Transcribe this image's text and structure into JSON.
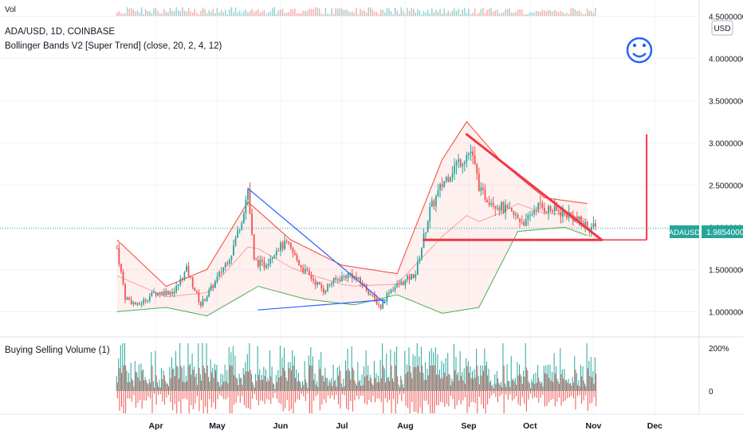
{
  "header": {
    "vol_label": "Vol",
    "symbol_line": "ADA/USD, 1D, COINBASE",
    "indicator_line": "Bollinger Bands V2 [Super Trend] (close, 20, 2, 4, 12)",
    "lower_indicator": "Buying Selling Volume (1)",
    "currency": "USD",
    "last_price_symbol": "ADAUSD",
    "last_price": "1.98540000"
  },
  "icons": [
    "smiley-face-icon"
  ],
  "colors": {
    "up": "#26a69a",
    "down": "#ef5350",
    "accent_red": "#f23645",
    "blue_line": "#2962ff",
    "green_band": "#4caf50",
    "red_band": "#f44336"
  },
  "chart_data": {
    "type": "candlestick",
    "x_tick_labels": [
      "Apr",
      "May",
      "Jun",
      "Jul",
      "Aug",
      "Sep",
      "Oct",
      "Nov",
      "Dec"
    ],
    "y_tick_labels": [
      "4.50000000",
      "4.00000000",
      "3.50000000",
      "3.00000000",
      "2.50000000",
      "2.00000000",
      "1.50000000",
      "1.00000000"
    ],
    "y_ticks": [
      4.5,
      4.0,
      3.5,
      3.0,
      2.5,
      2.0,
      1.5,
      1.0
    ],
    "ylim": [
      0.72,
      4.56
    ],
    "lower_y_tick_labels": [
      "200%",
      "0"
    ],
    "start_date": "2021-03-13",
    "end_date": "2021-11-02",
    "last_price": 1.9854,
    "price_path": [
      [
        "2021-03-13",
        1.75
      ],
      [
        "2021-03-17",
        1.17
      ],
      [
        "2021-03-23",
        1.07
      ],
      [
        "2021-03-31",
        1.22
      ],
      [
        "2021-04-10",
        1.24
      ],
      [
        "2021-04-16",
        1.5
      ],
      [
        "2021-04-23",
        1.08
      ],
      [
        "2021-04-30",
        1.35
      ],
      [
        "2021-05-08",
        1.7
      ],
      [
        "2021-05-13",
        2.1
      ],
      [
        "2021-05-16",
        2.45
      ],
      [
        "2021-05-19",
        1.6
      ],
      [
        "2021-05-24",
        1.55
      ],
      [
        "2021-05-30",
        1.75
      ],
      [
        "2021-06-04",
        1.8
      ],
      [
        "2021-06-12",
        1.5
      ],
      [
        "2021-06-22",
        1.25
      ],
      [
        "2021-06-26",
        1.35
      ],
      [
        "2021-07-05",
        1.45
      ],
      [
        "2021-07-12",
        1.3
      ],
      [
        "2021-07-20",
        1.05
      ],
      [
        "2021-07-24",
        1.25
      ],
      [
        "2021-07-31",
        1.35
      ],
      [
        "2021-08-06",
        1.45
      ],
      [
        "2021-08-13",
        2.2
      ],
      [
        "2021-08-20",
        2.55
      ],
      [
        "2021-08-26",
        2.75
      ],
      [
        "2021-09-02",
        2.9
      ],
      [
        "2021-09-07",
        2.4
      ],
      [
        "2021-09-13",
        2.3
      ],
      [
        "2021-09-22",
        2.15
      ],
      [
        "2021-09-29",
        2.05
      ],
      [
        "2021-10-04",
        2.25
      ],
      [
        "2021-10-12",
        2.2
      ],
      [
        "2021-10-20",
        2.15
      ],
      [
        "2021-10-26",
        2.05
      ],
      [
        "2021-11-02",
        1.9854
      ]
    ],
    "bollinger_upper": [
      [
        "2021-03-13",
        1.85
      ],
      [
        "2021-04-06",
        1.3
      ],
      [
        "2021-04-26",
        1.5
      ],
      [
        "2021-05-16",
        2.3
      ],
      [
        "2021-06-06",
        1.85
      ],
      [
        "2021-07-01",
        1.55
      ],
      [
        "2021-07-28",
        1.45
      ],
      [
        "2021-08-19",
        2.8
      ],
      [
        "2021-08-31",
        3.25
      ],
      [
        "2021-09-18",
        2.75
      ],
      [
        "2021-10-08",
        2.35
      ],
      [
        "2021-10-29",
        2.28
      ]
    ],
    "bollinger_lower": [
      [
        "2021-03-13",
        1.0
      ],
      [
        "2021-04-06",
        1.05
      ],
      [
        "2021-04-26",
        0.95
      ],
      [
        "2021-05-21",
        1.3
      ],
      [
        "2021-06-13",
        1.15
      ],
      [
        "2021-07-07",
        1.08
      ],
      [
        "2021-07-28",
        1.2
      ],
      [
        "2021-08-19",
        0.98
      ],
      [
        "2021-09-06",
        1.05
      ],
      [
        "2021-09-25",
        1.95
      ],
      [
        "2021-10-18",
        2.0
      ],
      [
        "2021-10-29",
        1.9
      ]
    ],
    "drawings": {
      "upper_triangle_lines": [
        {
          "color": "blue",
          "from": [
            "2021-05-16",
            2.46
          ],
          "to": [
            "2021-07-22",
            1.1
          ]
        },
        {
          "color": "blue",
          "from": [
            "2021-05-21",
            1.02
          ],
          "to": [
            "2021-07-22",
            1.14
          ]
        },
        {
          "color": "red",
          "from": [
            "2021-08-31",
            3.1
          ],
          "to": [
            "2021-11-05",
            1.85
          ]
        },
        {
          "color": "red",
          "from": [
            "2021-08-10",
            1.85
          ],
          "to": [
            "2021-11-05",
            1.85
          ]
        }
      ],
      "target_line": {
        "color": "red",
        "from": [
          "2021-11-27",
          1.85
        ],
        "to": [
          "2021-11-27",
          3.1
        ]
      }
    }
  }
}
